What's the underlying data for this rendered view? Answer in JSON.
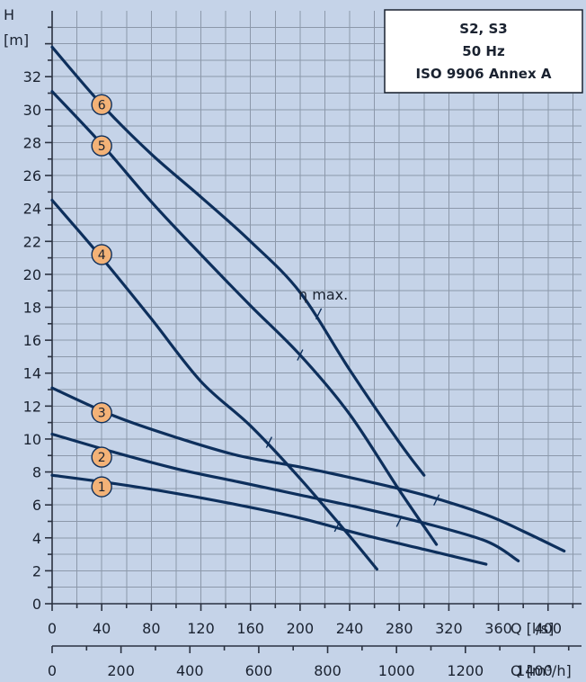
{
  "info_box": {
    "line1": "S2, S3",
    "line2": "50 Hz",
    "line3": "ISO 9906 Annex A"
  },
  "annotation": "η max.",
  "chart_data": {
    "type": "line",
    "xlabel": "Q [l/s]",
    "xlabel2": "Q [m³/h]",
    "ylabel": "H",
    "yunit": "[m]",
    "xlim": [
      0,
      427
    ],
    "ylim": [
      0,
      36
    ],
    "xticks": [
      "0",
      "40",
      "80",
      "120",
      "160",
      "200",
      "240",
      "280",
      "320",
      "360",
      "400"
    ],
    "xticks_values": [
      0,
      40,
      80,
      120,
      160,
      200,
      240,
      280,
      320,
      360,
      400
    ],
    "x2ticks": [
      "0",
      "200",
      "400",
      "600",
      "800",
      "1000",
      "1200",
      "1400"
    ],
    "x2ticks_values_l_per_s": [
      0,
      55.56,
      111.11,
      166.67,
      222.22,
      277.78,
      333.33,
      388.89
    ],
    "x2_minor_step_m3h": 100,
    "yticks": [
      "0",
      "2",
      "4",
      "6",
      "8",
      "10",
      "12",
      "14",
      "16",
      "18",
      "20",
      "22",
      "24",
      "26",
      "28",
      "30",
      "32"
    ],
    "yticks_values": [
      0,
      2,
      4,
      6,
      8,
      10,
      12,
      14,
      16,
      18,
      20,
      22,
      24,
      26,
      28,
      30,
      32
    ],
    "grid": true,
    "series": [
      {
        "name": "1",
        "label_at": [
          40,
          7.1
        ],
        "eta_max_at": [
          230,
          4.7
        ],
        "points": [
          [
            0,
            7.8
          ],
          [
            50,
            7.3
          ],
          [
            100,
            6.7
          ],
          [
            150,
            6.0
          ],
          [
            200,
            5.2
          ],
          [
            250,
            4.2
          ],
          [
            300,
            3.3
          ],
          [
            350,
            2.4
          ]
        ]
      },
      {
        "name": "2",
        "label_at": [
          40,
          8.9
        ],
        "eta_max_at": [
          280,
          5.0
        ],
        "points": [
          [
            0,
            10.3
          ],
          [
            50,
            9.2
          ],
          [
            100,
            8.2
          ],
          [
            150,
            7.4
          ],
          [
            200,
            6.6
          ],
          [
            250,
            5.8
          ],
          [
            300,
            4.9
          ],
          [
            350,
            3.8
          ],
          [
            376,
            2.6
          ]
        ]
      },
      {
        "name": "3",
        "label_at": [
          40,
          11.6
        ],
        "eta_max_at": [
          310,
          6.3
        ],
        "points": [
          [
            0,
            13.1
          ],
          [
            50,
            11.4
          ],
          [
            100,
            10.1
          ],
          [
            150,
            9.0
          ],
          [
            200,
            8.3
          ],
          [
            250,
            7.5
          ],
          [
            300,
            6.6
          ],
          [
            350,
            5.4
          ],
          [
            380,
            4.4
          ],
          [
            413,
            3.2
          ]
        ]
      },
      {
        "name": "4",
        "label_at": [
          40,
          21.2
        ],
        "eta_max_at": [
          175,
          9.8
        ],
        "points": [
          [
            0,
            24.5
          ],
          [
            40,
            21.0
          ],
          [
            80,
            17.3
          ],
          [
            120,
            13.5
          ],
          [
            160,
            10.8
          ],
          [
            200,
            7.6
          ],
          [
            240,
            4.1
          ],
          [
            262,
            2.1
          ]
        ]
      },
      {
        "name": "5",
        "label_at": [
          40,
          27.8
        ],
        "eta_max_at": [
          200,
          15.1
        ],
        "points": [
          [
            0,
            31.1
          ],
          [
            40,
            27.9
          ],
          [
            80,
            24.4
          ],
          [
            120,
            21.2
          ],
          [
            160,
            18.1
          ],
          [
            200,
            15.1
          ],
          [
            240,
            11.5
          ],
          [
            280,
            6.9
          ],
          [
            310,
            3.6
          ]
        ]
      },
      {
        "name": "6",
        "label_at": [
          40,
          30.3
        ],
        "eta_max_at": [
          215,
          17.6
        ],
        "points": [
          [
            0,
            33.8
          ],
          [
            40,
            30.3
          ],
          [
            80,
            27.3
          ],
          [
            120,
            24.7
          ],
          [
            160,
            22.0
          ],
          [
            200,
            18.9
          ],
          [
            240,
            14.2
          ],
          [
            280,
            9.8
          ],
          [
            300,
            7.8
          ]
        ]
      }
    ]
  }
}
